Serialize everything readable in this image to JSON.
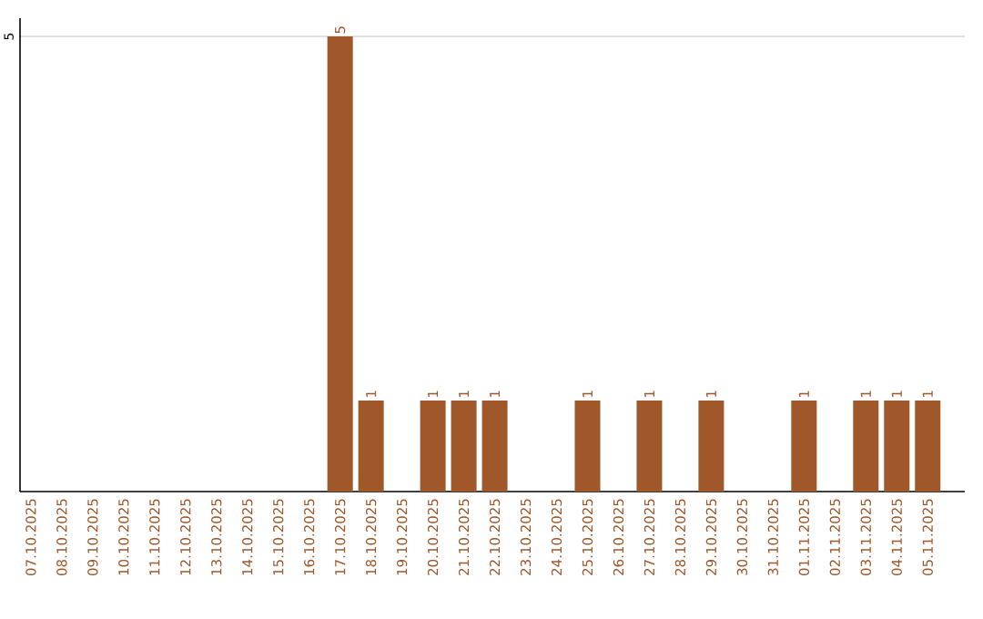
{
  "chart_data": {
    "type": "bar",
    "categories": [
      "07.10.2025",
      "08.10.2025",
      "09.10.2025",
      "10.10.2025",
      "11.10.2025",
      "12.10.2025",
      "13.10.2025",
      "14.10.2025",
      "15.10.2025",
      "16.10.2025",
      "17.10.2025",
      "18.10.2025",
      "19.10.2025",
      "20.10.2025",
      "21.10.2025",
      "22.10.2025",
      "23.10.2025",
      "24.10.2025",
      "25.10.2025",
      "26.10.2025",
      "27.10.2025",
      "28.10.2025",
      "29.10.2025",
      "30.10.2025",
      "31.10.2025",
      "01.11.2025",
      "02.11.2025",
      "03.11.2025",
      "04.11.2025",
      "05.11.2025"
    ],
    "values": [
      0,
      0,
      0,
      0,
      0,
      0,
      0,
      0,
      0,
      0,
      5,
      1,
      0,
      1,
      1,
      1,
      0,
      0,
      1,
      0,
      1,
      0,
      1,
      0,
      0,
      1,
      0,
      1,
      1,
      1
    ],
    "value_labels": [
      null,
      null,
      null,
      null,
      null,
      null,
      null,
      null,
      null,
      null,
      "5",
      "1",
      null,
      "1",
      "1",
      "1",
      null,
      null,
      "1",
      null,
      "1",
      null,
      "1",
      null,
      null,
      "1",
      null,
      "1",
      "1",
      "1"
    ],
    "color": "#a0572a",
    "ylim": [
      0,
      5.2
    ],
    "yticks": [
      5
    ],
    "grid": "y"
  }
}
